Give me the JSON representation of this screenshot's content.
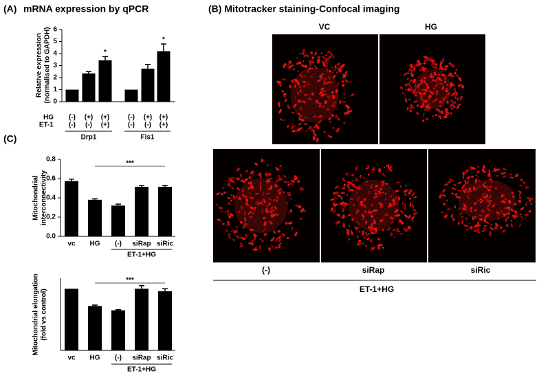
{
  "chart_data": [
    {
      "type": "bar",
      "panel": "(A)",
      "title": "mRNA expression by qPCR",
      "ylabel": [
        "Relative expression",
        "(normalised to GAPDH)"
      ],
      "values": [
        1,
        2.35,
        3.45,
        1,
        2.75,
        4.2
      ],
      "errors": [
        null,
        0.15,
        0.3,
        null,
        0.35,
        0.6
      ],
      "value_annotations": [
        null,
        null,
        "*",
        null,
        null,
        "*"
      ],
      "rows": [
        {
          "name": "HG",
          "labels": [
            "(-)",
            "(+)",
            "(+)",
            "(-)",
            "(+)",
            "(+)"
          ]
        },
        {
          "name": "ET-1",
          "labels": [
            "(-)",
            "(-)",
            "(+)",
            "(-)",
            "(-)",
            "(+)"
          ]
        }
      ],
      "groups": [
        "Drp1",
        "Fis1"
      ],
      "color": "#000000",
      "ylim": [
        0,
        6
      ],
      "yticks": [
        0,
        1,
        2,
        3,
        4,
        5,
        6
      ]
    },
    {
      "type": "bar",
      "panel": "(C)",
      "ylabel": [
        "Mitochondrial",
        "interconnectivity"
      ],
      "categories": [
        "vc",
        "HG",
        "(-)",
        "siRap",
        "siRic"
      ],
      "values": [
        0.575,
        0.38,
        0.32,
        0.515,
        0.515
      ],
      "errors": [
        0.02,
        0.01,
        0.015,
        0.015,
        0.015
      ],
      "significance": "***",
      "group_label": "ET-1+HG",
      "color": "#000000",
      "ylim": [
        0,
        0.8
      ],
      "yticks": [
        {
          "value": 0,
          "label": "0.0"
        },
        0.2,
        0.4,
        0.6,
        0.8
      ]
    },
    {
      "type": "bar",
      "ylabel": [
        "Mitochondrial elongation",
        "(fold vs control)"
      ],
      "categories": [
        "vc",
        "HG",
        "(-)",
        "siRap",
        "siRic"
      ],
      "values": [
        1.0,
        0.72,
        0.65,
        1.0,
        0.96
      ],
      "errors": [
        null,
        0.015,
        0.01,
        0.05,
        0.04
      ],
      "significance": "***",
      "group_label": "ET-1+HG",
      "color": "#000000",
      "ylim": [
        0,
        1.17
      ]
    }
  ],
  "panel_b": {
    "title": "(B) Mitotracker staining-Confocal imaging",
    "top_labels": [
      "VC",
      "HG"
    ],
    "bottom_labels": [
      "(-)",
      "siRap",
      "siRic"
    ],
    "group_label": "ET-1+HG"
  }
}
